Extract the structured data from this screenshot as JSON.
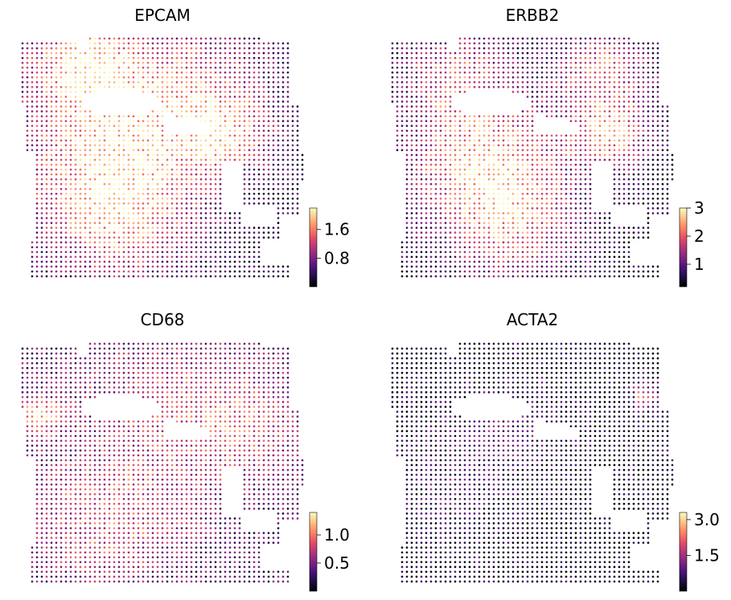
{
  "figure": {
    "colormap": "magma",
    "background": "#ffffff"
  },
  "chart_data": [
    {
      "type": "scatter",
      "title": "EPCAM",
      "colorbar": {
        "range": [
          0.0,
          2.2
        ],
        "ticks": [
          0.8,
          1.6
        ],
        "tick_labels": [
          "0.8",
          "1.6"
        ]
      },
      "expression_hotspots": [
        {
          "x": 0.22,
          "y": 0.1,
          "value": 2.0,
          "spread": 0.14
        },
        {
          "x": 0.3,
          "y": 0.48,
          "value": 1.9,
          "spread": 0.22
        },
        {
          "x": 0.72,
          "y": 0.42,
          "value": 1.6,
          "spread": 0.12
        },
        {
          "x": 0.6,
          "y": 0.18,
          "value": 1.4,
          "spread": 0.2
        },
        {
          "x": 0.35,
          "y": 0.78,
          "value": 1.6,
          "spread": 0.18
        }
      ],
      "baseline": 0.3,
      "grid_on": false
    },
    {
      "type": "scatter",
      "title": "ERBB2",
      "colorbar": {
        "range": [
          0.2,
          3.0
        ],
        "ticks": [
          1,
          2,
          3
        ],
        "tick_labels": [
          "1",
          "2",
          "3"
        ]
      },
      "expression_hotspots": [
        {
          "x": 0.32,
          "y": 0.48,
          "value": 2.6,
          "spread": 0.2
        },
        {
          "x": 0.78,
          "y": 0.4,
          "value": 2.7,
          "spread": 0.1
        },
        {
          "x": 0.75,
          "y": 0.12,
          "value": 2.3,
          "spread": 0.12
        },
        {
          "x": 0.22,
          "y": 0.12,
          "value": 1.8,
          "spread": 0.14
        },
        {
          "x": 0.42,
          "y": 0.78,
          "value": 2.2,
          "spread": 0.18
        }
      ],
      "baseline": 0.4,
      "grid_on": false
    },
    {
      "type": "scatter",
      "title": "CD68",
      "colorbar": {
        "range": [
          0.0,
          1.4
        ],
        "ticks": [
          0.5,
          1.0
        ],
        "tick_labels": [
          "0.5",
          "1.0"
        ]
      },
      "expression_hotspots": [
        {
          "x": 0.05,
          "y": 0.3,
          "value": 1.35,
          "spread": 0.06
        },
        {
          "x": 0.3,
          "y": 0.75,
          "value": 0.95,
          "spread": 0.2
        },
        {
          "x": 0.55,
          "y": 0.25,
          "value": 0.8,
          "spread": 0.25
        },
        {
          "x": 0.8,
          "y": 0.35,
          "value": 0.75,
          "spread": 0.15
        }
      ],
      "baseline": 0.35,
      "grid_on": false
    },
    {
      "type": "scatter",
      "title": "ACTA2",
      "colorbar": {
        "range": [
          0.0,
          3.3
        ],
        "ticks": [
          1.5,
          3.0
        ],
        "tick_labels": [
          "1.5",
          "3.0"
        ]
      },
      "expression_hotspots": [
        {
          "x": 0.9,
          "y": 0.22,
          "value": 2.4,
          "spread": 0.04
        },
        {
          "x": 0.4,
          "y": 0.35,
          "value": 1.2,
          "spread": 0.12
        },
        {
          "x": 0.2,
          "y": 0.6,
          "value": 0.9,
          "spread": 0.15
        }
      ],
      "baseline": 0.15,
      "grid_on": false
    }
  ]
}
